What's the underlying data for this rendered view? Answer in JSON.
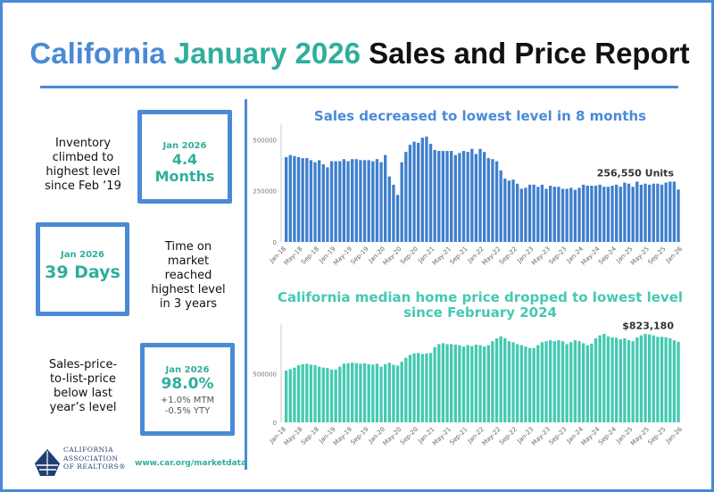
{
  "title": {
    "part1": "California",
    "part2": "January 2026",
    "part3": "Sales and Price Report"
  },
  "left": {
    "inventory": {
      "desc": [
        "Inventory",
        "climbed to",
        "highest level",
        "since Feb ‘19"
      ],
      "label": "Jan 2026",
      "value": "4.4 Months"
    },
    "dom": {
      "desc": [
        "Time on",
        "market",
        "reached",
        "highest level",
        "in 3 years"
      ],
      "label": "Jan 2026",
      "value": "39 Days"
    },
    "splp": {
      "desc": [
        "Sales-price-",
        "to-list-price",
        "below last",
        "year’s level"
      ],
      "label": "Jan 2026",
      "value": "98.0%",
      "sub1": "+1.0% MTM",
      "sub2": "-0.5% YTY"
    }
  },
  "footer": {
    "url": "www.car.org/marketdata",
    "logo_lines": [
      "CALIFORNIA",
      "ASSOCIATION",
      "OF REALTORS®"
    ]
  },
  "colors": {
    "blue": "#4a8ad7",
    "teal": "#2fae9c",
    "sales_bar": "#3f7fcd",
    "price_bar": "#44c9b2"
  },
  "chart_data": [
    {
      "type": "bar",
      "title": "Sales decreased to lowest level in 8 months",
      "annotation": "256,550 Units",
      "yticks": [
        "0",
        "250000",
        "500000"
      ],
      "ylim": [
        0,
        550000
      ],
      "xticks": [
        "Jan-18",
        "May-18",
        "Sep-18",
        "Jan-19",
        "May-19",
        "Sep-19",
        "Jan-20",
        "May-20",
        "Sep-20",
        "Jan-21",
        "May-21",
        "Sep-21",
        "Jan-22",
        "May-22",
        "Sep-22",
        "Jan-23",
        "May-23",
        "Sep-23",
        "Jan-24",
        "May-24",
        "Sep-24",
        "Jan-25",
        "May-25",
        "Sep-25",
        "Jan-26"
      ],
      "values": [
        415000,
        425000,
        420000,
        415000,
        410000,
        410000,
        400000,
        390000,
        400000,
        380000,
        365000,
        395000,
        395000,
        395000,
        405000,
        395000,
        405000,
        405000,
        400000,
        400000,
        400000,
        395000,
        405000,
        390000,
        425000,
        320000,
        280000,
        230000,
        390000,
        440000,
        475000,
        490000,
        485000,
        510000,
        515000,
        480000,
        450000,
        445000,
        445000,
        445000,
        445000,
        425000,
        435000,
        445000,
        440000,
        455000,
        430000,
        455000,
        440000,
        410000,
        405000,
        395000,
        350000,
        310000,
        300000,
        305000,
        285000,
        260000,
        265000,
        280000,
        280000,
        270000,
        280000,
        260000,
        275000,
        270000,
        270000,
        260000,
        260000,
        265000,
        255000,
        265000,
        280000,
        275000,
        275000,
        275000,
        280000,
        270000,
        270000,
        275000,
        280000,
        270000,
        290000,
        285000,
        270000,
        295000,
        280000,
        285000,
        280000,
        285000,
        285000,
        280000,
        290000,
        295000,
        295000,
        256550
      ]
    },
    {
      "type": "bar",
      "title": "California median home price dropped to lowest level since February 2024",
      "title_lines": [
        "California median home price dropped to lowest level",
        "since February 2024"
      ],
      "annotation": "$823,180",
      "yticks": [
        "0",
        "500000"
      ],
      "ylim": [
        0,
        950000
      ],
      "xticks": [
        "Jan-18",
        "May-18",
        "Sep-18",
        "Jan-19",
        "May-19",
        "Sep-19",
        "Jan-20",
        "May-20",
        "Sep-20",
        "Jan-21",
        "May-21",
        "Sep-21",
        "Jan-22",
        "May-22",
        "Sep-22",
        "Jan-23",
        "May-23",
        "Sep-23",
        "Jan-24",
        "May-24",
        "Sep-24",
        "Jan-25",
        "May-25",
        "Sep-25",
        "Jan-26"
      ],
      "values": [
        530000,
        545000,
        560000,
        585000,
        595000,
        600000,
        590000,
        585000,
        570000,
        560000,
        555000,
        540000,
        540000,
        570000,
        600000,
        605000,
        610000,
        605000,
        600000,
        605000,
        595000,
        590000,
        600000,
        570000,
        595000,
        610000,
        590000,
        580000,
        620000,
        660000,
        690000,
        705000,
        710000,
        700000,
        705000,
        710000,
        770000,
        800000,
        810000,
        800000,
        800000,
        795000,
        790000,
        775000,
        790000,
        780000,
        795000,
        790000,
        775000,
        790000,
        830000,
        860000,
        880000,
        860000,
        830000,
        820000,
        800000,
        790000,
        775000,
        760000,
        760000,
        790000,
        820000,
        830000,
        840000,
        830000,
        840000,
        830000,
        800000,
        820000,
        840000,
        830000,
        810000,
        790000,
        805000,
        860000,
        890000,
        905000,
        880000,
        870000,
        865000,
        850000,
        860000,
        840000,
        830000,
        870000,
        890000,
        905000,
        900000,
        890000,
        875000,
        875000,
        870000,
        860000,
        840000,
        823180
      ]
    }
  ]
}
